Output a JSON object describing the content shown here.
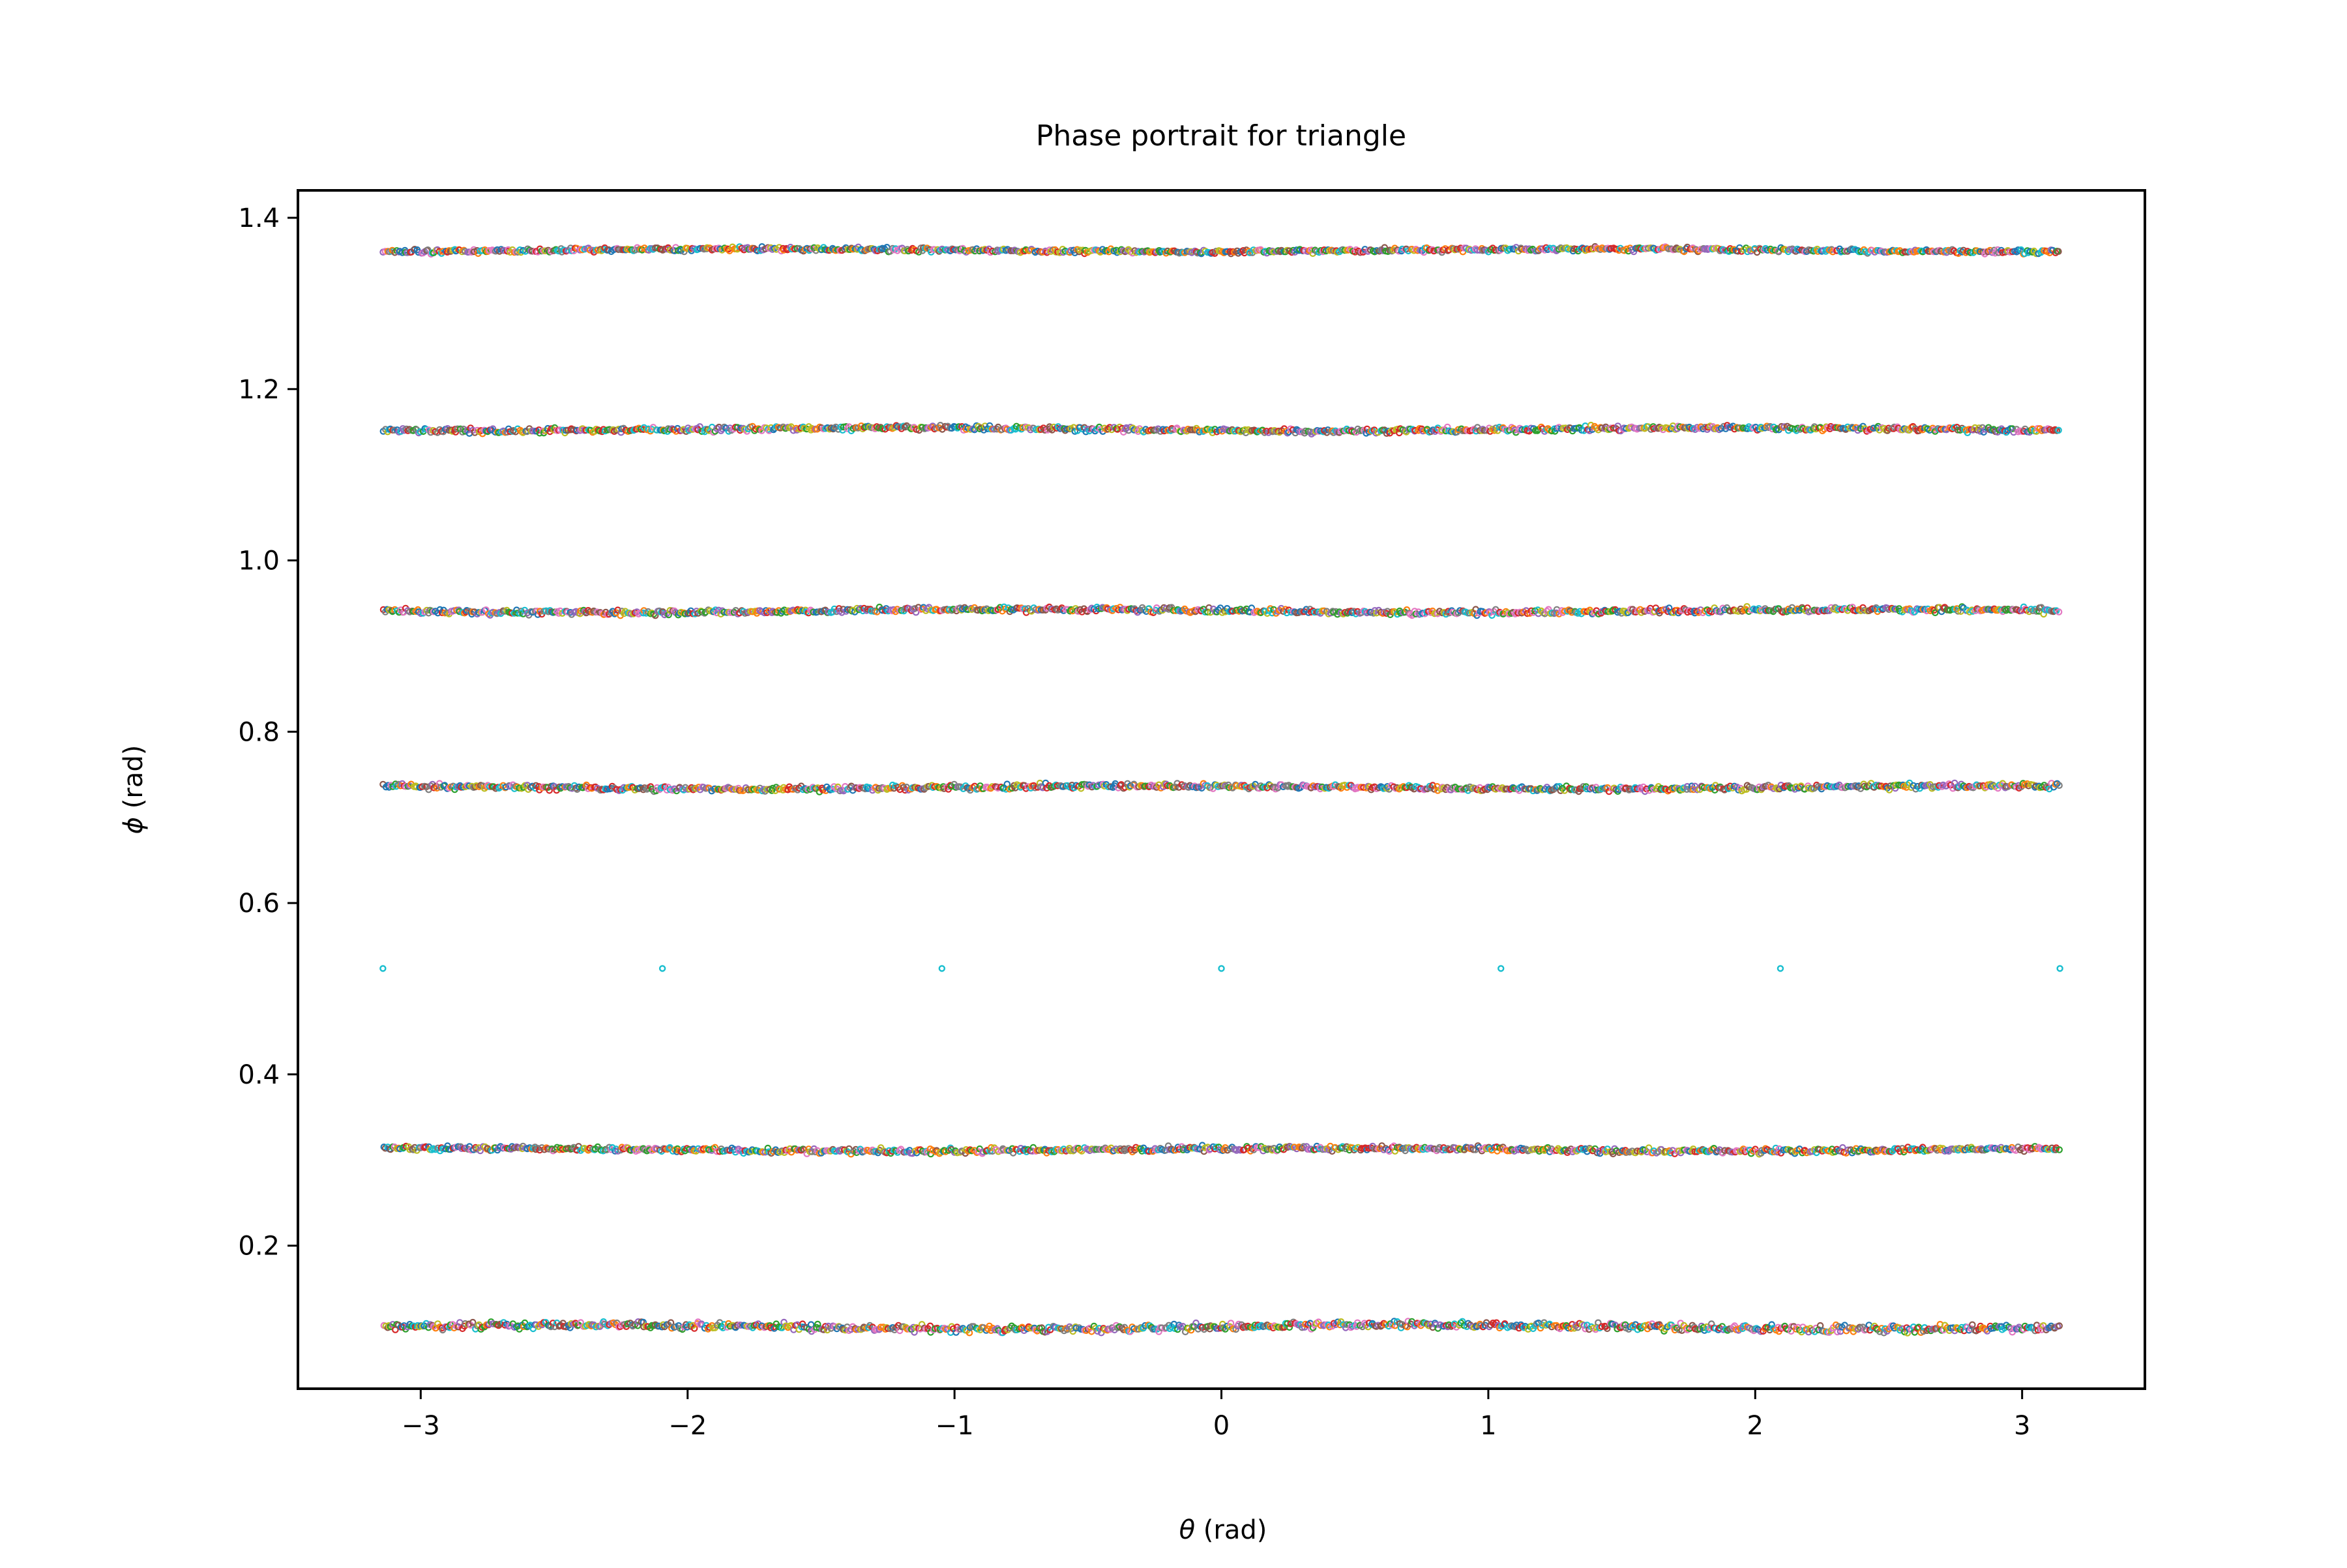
{
  "chart_data": {
    "type": "scatter",
    "title": "Phase portrait for triangle",
    "xlabel_symbol": "θ",
    "xlabel_unit": " (rad)",
    "ylabel_symbol": "ϕ",
    "ylabel_unit": " (rad)",
    "xlim": [
      -3.46,
      3.46
    ],
    "ylim": [
      0.033,
      1.432
    ],
    "x_ticks": [
      -3,
      -2,
      -1,
      0,
      1,
      2,
      3
    ],
    "x_tick_labels": [
      "−3",
      "−2",
      "−1",
      "0",
      "1",
      "2",
      "3"
    ],
    "y_ticks": [
      0.2,
      0.4,
      0.6,
      0.8,
      1.0,
      1.2,
      1.4
    ],
    "y_tick_labels": [
      "0.2",
      "0.4",
      "0.6",
      "0.8",
      "1.0",
      "1.2",
      "1.4"
    ],
    "grid": false,
    "legend": "none",
    "theta_range": [
      -3.14159,
      3.14159
    ],
    "bands": [
      {
        "phi": 0.105,
        "spread": 0.004
      },
      {
        "phi": 0.312,
        "spread": 0.003
      },
      {
        "phi": 0.735,
        "spread": 0.003
      },
      {
        "phi": 0.941,
        "spread": 0.003
      },
      {
        "phi": 1.153,
        "spread": 0.003
      },
      {
        "phi": 1.362,
        "spread": 0.0025
      }
    ],
    "fixed_points": {
      "phi": 0.5236,
      "theta": [
        -3.1416,
        -2.0944,
        -1.0472,
        0.0,
        1.0472,
        2.0944,
        3.1416
      ],
      "color": "#17becf"
    },
    "colors": [
      "#1f77b4",
      "#ff7f0e",
      "#2ca02c",
      "#d62728",
      "#9467bd",
      "#8c564b",
      "#e377c2",
      "#7f7f7f",
      "#bcbd22",
      "#17becf"
    ]
  }
}
